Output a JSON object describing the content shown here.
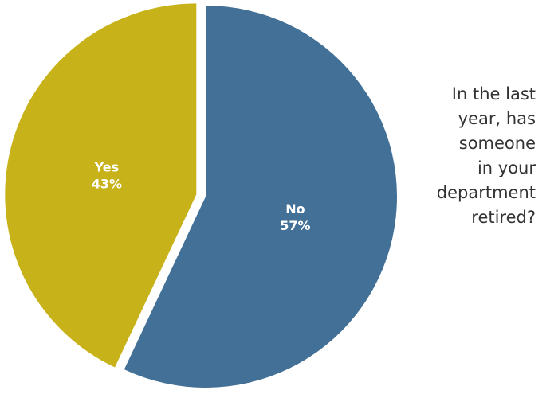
{
  "chart_data": {
    "type": "pie",
    "title": "In the last year, has someone in your department retired?",
    "title_lines": [
      "In the last",
      "year, has",
      "someone",
      "in your",
      "department",
      "retired?"
    ],
    "slices": [
      {
        "name": "Yes",
        "value": 43,
        "label": "43%",
        "color": "#c8b219"
      },
      {
        "name": "No",
        "value": 57,
        "label": "57%",
        "color": "#437097"
      }
    ],
    "start": "12 o'clock",
    "direction": "clockwise, No first",
    "exploded_slice": "Yes"
  }
}
